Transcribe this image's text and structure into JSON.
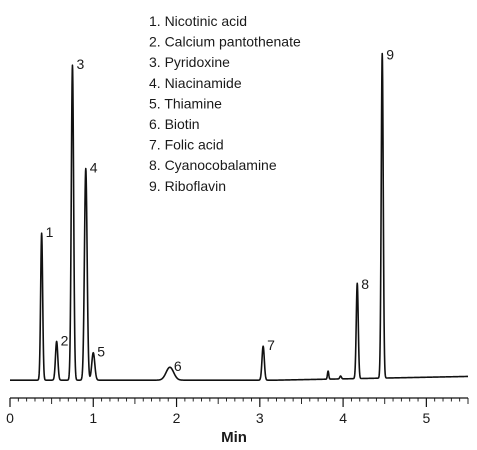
{
  "chart_data": {
    "type": "line",
    "title": "",
    "xlabel": "Min",
    "ylabel": "",
    "xlim": [
      0,
      5.5
    ],
    "ylim": [
      0,
      100
    ],
    "xticks": [
      "0",
      "1",
      "2",
      "3",
      "4",
      "5"
    ],
    "legend": [
      "1. Nicotinic acid",
      "2. Calcium pantothenate",
      "3. Pyridoxine",
      "4. Niacinamide",
      "5. Thiamine",
      "6. Biotin",
      "7. Folic acid",
      "8. Cyanocobalamine",
      "9. Riboflavin"
    ],
    "legend_position": "top-center",
    "baseline": 1.5,
    "peaks": [
      {
        "label": "1",
        "x": 0.38,
        "y": 47,
        "width": 0.012
      },
      {
        "label": "2",
        "x": 0.56,
        "y": 13.5,
        "width": 0.014
      },
      {
        "label": "3",
        "x": 0.75,
        "y": 99,
        "width": 0.014
      },
      {
        "label": "4",
        "x": 0.91,
        "y": 67,
        "width": 0.016
      },
      {
        "label": "5",
        "x": 1.0,
        "y": 10,
        "width": 0.018
      },
      {
        "label": "6",
        "x": 1.92,
        "y": 5.5,
        "width": 0.045
      },
      {
        "label": "7",
        "x": 3.04,
        "y": 12,
        "width": 0.014
      },
      {
        "label": "",
        "x": 3.82,
        "y": 4,
        "width": 0.008
      },
      {
        "label": "",
        "x": 3.97,
        "y": 2.4,
        "width": 0.01
      },
      {
        "label": "8",
        "x": 4.17,
        "y": 31,
        "width": 0.012
      },
      {
        "label": "9",
        "x": 4.47,
        "y": 102,
        "width": 0.012
      }
    ]
  }
}
